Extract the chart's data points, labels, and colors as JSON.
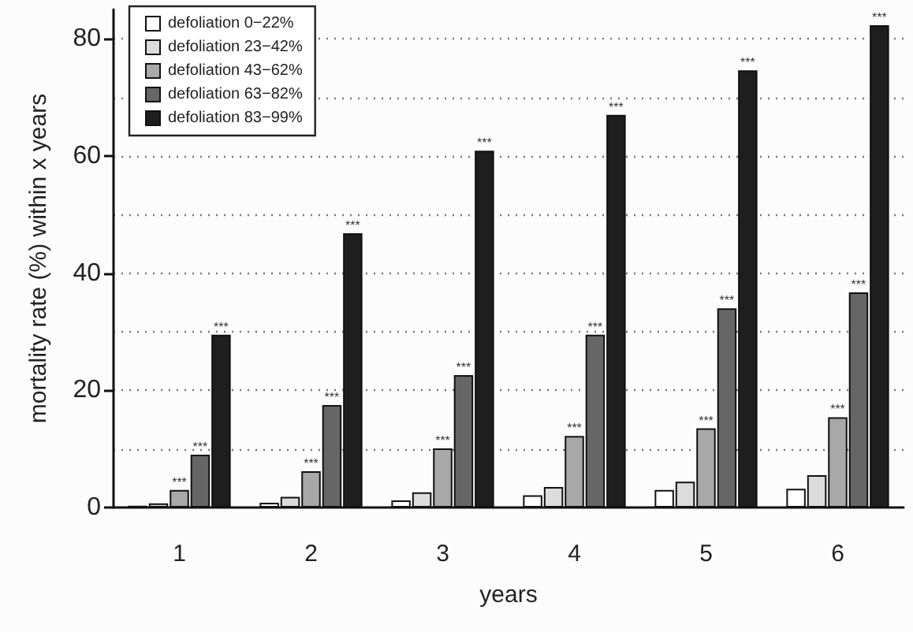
{
  "chart_data": {
    "type": "bar",
    "xlabel": "years",
    "ylabel": "mortality rate (%) within x years",
    "categories": [
      "1",
      "2",
      "3",
      "4",
      "5",
      "6"
    ],
    "series": [
      {
        "name": "defoliation 0−22%",
        "color": "#ffffff",
        "values": [
          0.3,
          0.8,
          1.2,
          2.1,
          3.0,
          3.2
        ]
      },
      {
        "name": "defoliation 23−42%",
        "color": "#dcdcdc",
        "values": [
          0.7,
          1.8,
          2.6,
          3.5,
          4.4,
          5.5
        ]
      },
      {
        "name": "defoliation 43−62%",
        "color": "#a8a8a8",
        "values": [
          3.0,
          6.2,
          10.1,
          12.2,
          13.5,
          15.4
        ],
        "value_labels": [
          "***",
          "***",
          "***",
          "***",
          "***",
          "***"
        ]
      },
      {
        "name": "defoliation 63−82%",
        "color": "#666666",
        "values": [
          9.0,
          17.5,
          22.6,
          29.5,
          34.0,
          36.7
        ],
        "value_labels": [
          "***",
          "***",
          "***",
          "***",
          "***",
          "***"
        ]
      },
      {
        "name": "defoliation 83−99%",
        "color": "#1e1e1e",
        "values": [
          29.5,
          46.8,
          60.9,
          67.0,
          74.6,
          82.3
        ],
        "value_labels": [
          "***",
          "***",
          "***",
          "***",
          "***",
          "***"
        ]
      }
    ],
    "ylim": [
      0,
      85
    ],
    "yticks": [
      0,
      {
        "value": 10,
        "label": null
      },
      20,
      {
        "value": 30,
        "label": null
      },
      40,
      {
        "value": 50,
        "label": null
      },
      60,
      {
        "value": 70,
        "label": null
      },
      80
    ],
    "grid": "y",
    "legend": "top left"
  }
}
